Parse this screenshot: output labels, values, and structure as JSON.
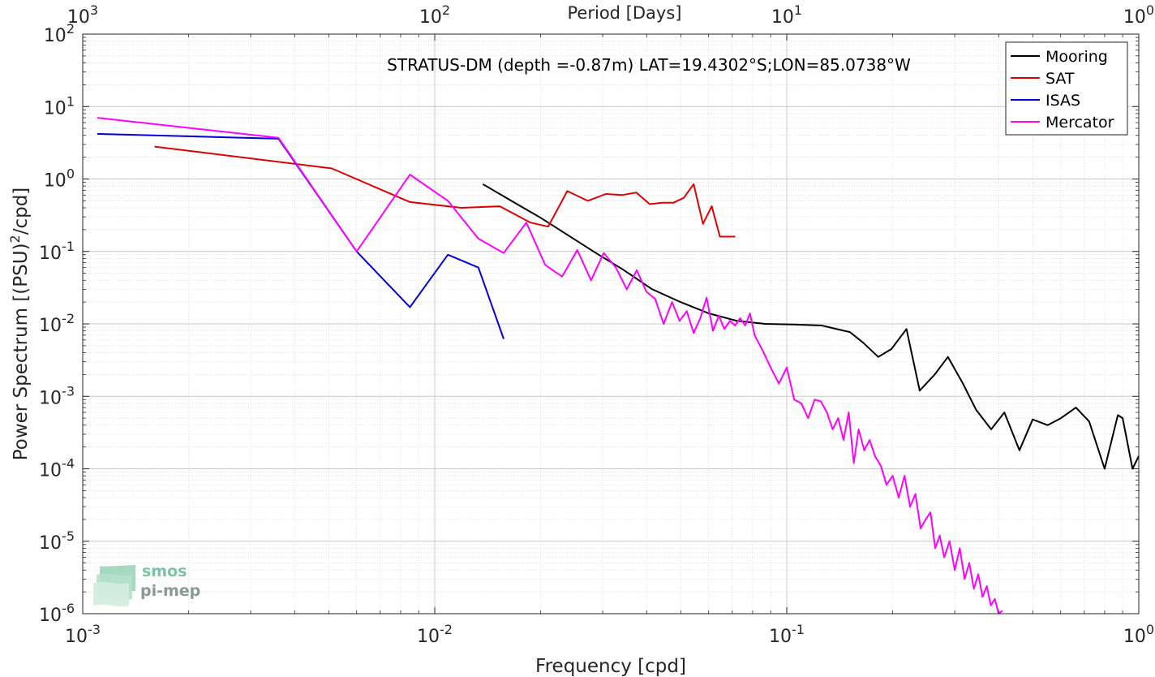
{
  "chart_data": {
    "type": "line",
    "title": "STRATUS-DM (depth =-0.87m) LAT=19.4302°S;LON=85.0738°W",
    "xlabel": "Frequency [cpd]",
    "xlabel_top": "Period [Days]",
    "ylabel_main": "Power Spectrum [(PSU)",
    "ylabel_sup": "2",
    "ylabel_tail": "/cpd]",
    "xscale": "log",
    "yscale": "log",
    "xlim": [
      0.001,
      1
    ],
    "ylim": [
      1e-06,
      100
    ],
    "grid": true,
    "legend_position": "top-right",
    "x_ticks": [
      {
        "value": 0.001,
        "base": "10",
        "exp": "-3"
      },
      {
        "value": 0.01,
        "base": "10",
        "exp": "-2"
      },
      {
        "value": 0.1,
        "base": "10",
        "exp": "-1"
      },
      {
        "value": 1,
        "base": "10",
        "exp": "0"
      }
    ],
    "x_top_ticks": [
      {
        "value": 0.001,
        "base": "10",
        "exp": "3"
      },
      {
        "value": 0.01,
        "base": "10",
        "exp": "2"
      },
      {
        "value": 0.1,
        "base": "10",
        "exp": "1"
      },
      {
        "value": 1,
        "base": "10",
        "exp": "0"
      }
    ],
    "y_ticks": [
      {
        "value": 100,
        "base": "10",
        "exp": "2"
      },
      {
        "value": 10,
        "base": "10",
        "exp": "1"
      },
      {
        "value": 1,
        "base": "10",
        "exp": "0"
      },
      {
        "value": 0.1,
        "base": "10",
        "exp": "-1"
      },
      {
        "value": 0.01,
        "base": "10",
        "exp": "-2"
      },
      {
        "value": 0.001,
        "base": "10",
        "exp": "-3"
      },
      {
        "value": 0.0001,
        "base": "10",
        "exp": "-4"
      },
      {
        "value": 1e-05,
        "base": "10",
        "exp": "-5"
      },
      {
        "value": 1e-06,
        "base": "10",
        "exp": "-6"
      }
    ],
    "series": [
      {
        "name": "Mooring",
        "color": "#000000",
        "x": [
          0.0137,
          0.0165,
          0.0198,
          0.0238,
          0.0287,
          0.0345,
          0.0415,
          0.0499,
          0.06,
          0.0722,
          0.0869,
          0.1045,
          0.1257,
          0.1512,
          0.1648,
          0.1819,
          0.1983,
          0.2188,
          0.2386,
          0.2632,
          0.2869,
          0.3166,
          0.3452,
          0.3808,
          0.4152,
          0.4581,
          0.4995,
          0.5511,
          0.6009,
          0.663,
          0.7229,
          0.7998,
          0.8719,
          0.9,
          0.96,
          1.0
        ],
        "y": [
          0.85,
          0.5,
          0.3,
          0.17,
          0.095,
          0.055,
          0.03,
          0.02,
          0.014,
          0.011,
          0.01,
          0.0098,
          0.0095,
          0.0077,
          0.0055,
          0.0035,
          0.0045,
          0.0085,
          0.0012,
          0.002,
          0.0035,
          0.0015,
          0.00065,
          0.00035,
          0.0006,
          0.00018,
          0.00048,
          0.0004,
          0.0005,
          0.0007,
          0.00045,
          0.0001,
          0.00055,
          0.0005,
          0.0001,
          0.00015
        ]
      },
      {
        "name": "SAT",
        "color": "#e00000",
        "x": [
          0.0016,
          0.0051,
          0.0085,
          0.0119,
          0.0153,
          0.0187,
          0.021,
          0.0238,
          0.0272,
          0.0306,
          0.034,
          0.0374,
          0.0408,
          0.0442,
          0.0476,
          0.051,
          0.0544,
          0.0578,
          0.0612,
          0.0646,
          0.068,
          0.0714
        ],
        "y": [
          2.8,
          1.4,
          0.48,
          0.4,
          0.42,
          0.25,
          0.22,
          0.68,
          0.5,
          0.62,
          0.6,
          0.65,
          0.45,
          0.47,
          0.47,
          0.55,
          0.85,
          0.24,
          0.42,
          0.16,
          0.16,
          0.16
        ]
      },
      {
        "name": "ISAS",
        "color": "#0000dd",
        "x": [
          0.0011,
          0.0036,
          0.006,
          0.0085,
          0.0109,
          0.0133,
          0.0157
        ],
        "y": [
          4.2,
          3.6,
          0.1,
          0.017,
          0.09,
          0.06,
          0.0062
        ]
      },
      {
        "name": "Mercator",
        "color": "#ff00ff",
        "x": [
          0.0011,
          0.0036,
          0.006,
          0.0085,
          0.0109,
          0.0133,
          0.0157,
          0.0182,
          0.0206,
          0.023,
          0.0254,
          0.0278,
          0.0302,
          0.0327,
          0.0351,
          0.0375,
          0.0399,
          0.0423,
          0.0447,
          0.0472,
          0.0496,
          0.052,
          0.0544,
          0.0568,
          0.0592,
          0.0617,
          0.0641,
          0.0665,
          0.0689,
          0.0713,
          0.0737,
          0.0762,
          0.0786,
          0.081,
          0.085,
          0.09,
          0.095,
          0.1,
          0.105,
          0.11,
          0.115,
          0.12,
          0.125,
          0.13,
          0.135,
          0.14,
          0.145,
          0.15,
          0.155,
          0.16,
          0.166,
          0.172,
          0.178,
          0.185,
          0.192,
          0.2,
          0.208,
          0.216,
          0.224,
          0.232,
          0.24,
          0.248,
          0.256,
          0.264,
          0.272,
          0.28,
          0.29,
          0.3,
          0.31,
          0.32,
          0.33,
          0.34,
          0.35,
          0.36,
          0.37,
          0.38,
          0.39,
          0.4,
          0.41
        ],
        "y": [
          7,
          3.7,
          0.1,
          1.15,
          0.5,
          0.15,
          0.095,
          0.25,
          0.065,
          0.045,
          0.105,
          0.04,
          0.095,
          0.06,
          0.03,
          0.055,
          0.028,
          0.022,
          0.01,
          0.02,
          0.011,
          0.015,
          0.0075,
          0.012,
          0.023,
          0.008,
          0.013,
          0.0085,
          0.011,
          0.0095,
          0.012,
          0.0095,
          0.014,
          0.007,
          0.0045,
          0.0025,
          0.0015,
          0.0025,
          0.0009,
          0.0008,
          0.0005,
          0.0009,
          0.00085,
          0.0006,
          0.00035,
          0.0005,
          0.00025,
          0.0006,
          0.00012,
          0.00035,
          0.00018,
          0.00025,
          0.00015,
          0.00011,
          6e-05,
          8e-05,
          4e-05,
          8e-05,
          3e-05,
          4.5e-05,
          1.5e-05,
          2e-05,
          2.5e-05,
          8e-06,
          1.2e-05,
          6e-06,
          1e-05,
          4e-06,
          8e-06,
          3e-06,
          5e-06,
          2.2e-06,
          3.5e-06,
          1.7e-06,
          2.4e-06,
          1.3e-06,
          1.6e-06,
          1e-06,
          1.1e-06
        ]
      }
    ]
  },
  "watermark": {
    "line1": "smos",
    "line2": "pi-mep"
  }
}
